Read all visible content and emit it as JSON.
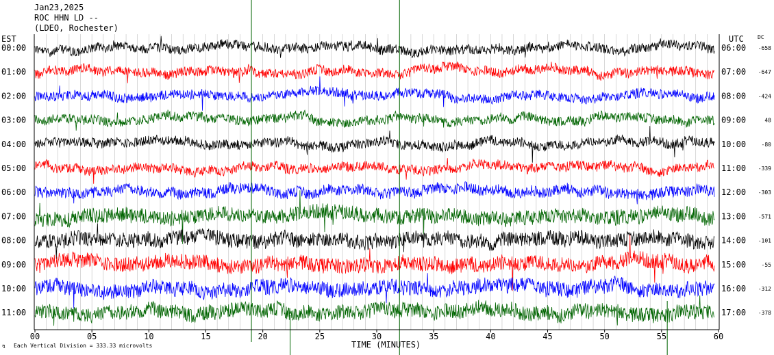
{
  "header": {
    "date": "Jan23,2025",
    "station": "ROC HHN LD --",
    "network": "(LDEO, Rochester)"
  },
  "axis": {
    "left_title": "EST",
    "right_title": "UTC",
    "dc_title": "DC",
    "xlabel": "TIME (MINUTES)",
    "footnote": "Each Vertical Division = 333.33 microvolts"
  },
  "colors": [
    "#000000",
    "#ff0000",
    "#0000ff",
    "#006400"
  ],
  "chart_data": {
    "type": "line",
    "title": "",
    "xlabel": "TIME (MINUTES)",
    "xlim": [
      0,
      60
    ],
    "xticks": [
      "00",
      "05",
      "10",
      "15",
      "20",
      "25",
      "30",
      "35",
      "40",
      "45",
      "50",
      "55",
      "60"
    ],
    "rows": [
      {
        "est": "00:00",
        "utc": "06:00",
        "dc": "-658",
        "color": "#000000"
      },
      {
        "est": "01:00",
        "utc": "07:00",
        "dc": "-647",
        "color": "#ff0000"
      },
      {
        "est": "02:00",
        "utc": "08:00",
        "dc": "-424",
        "color": "#0000ff"
      },
      {
        "est": "03:00",
        "utc": "09:00",
        "dc": "48",
        "color": "#006400"
      },
      {
        "est": "04:00",
        "utc": "10:00",
        "dc": "-80",
        "color": "#000000"
      },
      {
        "est": "05:00",
        "utc": "11:00",
        "dc": "-339",
        "color": "#ff0000"
      },
      {
        "est": "06:00",
        "utc": "12:00",
        "dc": "-303",
        "color": "#0000ff"
      },
      {
        "est": "07:00",
        "utc": "13:00",
        "dc": "-571",
        "color": "#006400"
      },
      {
        "est": "08:00",
        "utc": "14:00",
        "dc": "-101",
        "color": "#000000"
      },
      {
        "est": "09:00",
        "utc": "15:00",
        "dc": "-55",
        "color": "#ff0000"
      },
      {
        "est": "10:00",
        "utc": "16:00",
        "dc": "-312",
        "color": "#0000ff"
      },
      {
        "est": "11:00",
        "utc": "17:00",
        "dc": "-378",
        "color": "#006400"
      }
    ]
  }
}
